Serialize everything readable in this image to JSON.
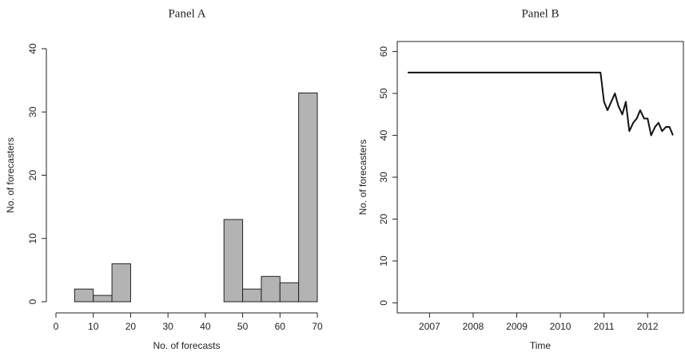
{
  "chart_data": [
    {
      "type": "histogram",
      "title": "Panel A",
      "xlabel": "No. of forecasts",
      "ylabel": "No. of forecasters",
      "bins": [
        5,
        10,
        15,
        20,
        25,
        30,
        35,
        40,
        45,
        50,
        55,
        60,
        65,
        70
      ],
      "values": [
        2,
        1,
        6,
        0,
        0,
        0,
        0,
        0,
        13,
        2,
        4,
        3,
        33
      ],
      "color": "#b3b3b3",
      "xlim": [
        0,
        70
      ],
      "xticks": [
        0,
        10,
        20,
        30,
        40,
        50,
        60,
        70
      ],
      "ylim": [
        0,
        40
      ],
      "yticks": [
        0,
        10,
        20,
        30,
        40
      ]
    },
    {
      "type": "line",
      "title": "Panel B",
      "xlabel": "Time",
      "ylabel": "No. of forecasters",
      "x": [
        2006.5,
        2010.92,
        2011.0,
        2011.08,
        2011.25,
        2011.33,
        2011.42,
        2011.5,
        2011.58,
        2011.67,
        2011.75,
        2011.83,
        2011.92,
        2012.0,
        2012.08,
        2012.17,
        2012.25,
        2012.33,
        2012.42,
        2012.5,
        2012.58
      ],
      "values": [
        55,
        55,
        48,
        46,
        50,
        47,
        45,
        48,
        41,
        43,
        44,
        46,
        44,
        44,
        40,
        42,
        43,
        41,
        42,
        42,
        40
      ],
      "color": "#111111",
      "xlim": [
        2006.26,
        2012.82
      ],
      "xticks": [
        2007,
        2008,
        2009,
        2010,
        2011,
        2012
      ],
      "ylim": [
        -2.4,
        62.4
      ],
      "yticks": [
        0,
        10,
        20,
        30,
        40,
        50,
        60
      ]
    }
  ]
}
